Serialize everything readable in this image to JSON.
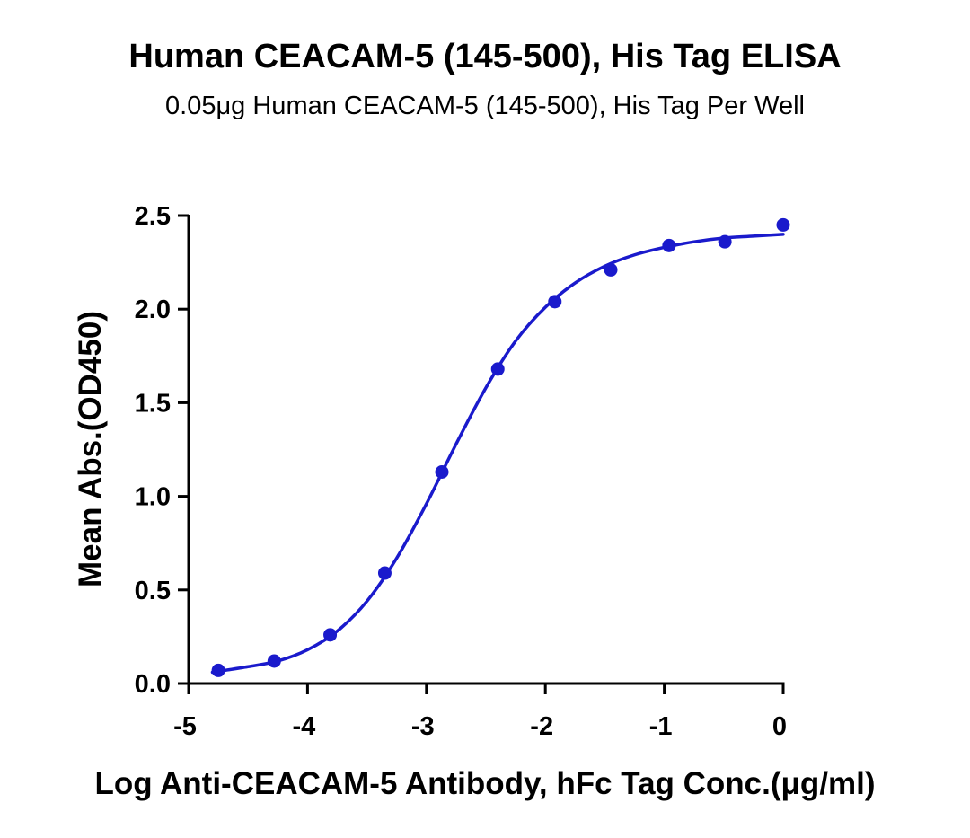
{
  "chart_data": {
    "type": "scatter",
    "title": "Human CEACAM-5 (145-500), His Tag ELISA",
    "subtitle": "0.05μg Human CEACAM-5 (145-500), His Tag Per Well",
    "xlabel": "Log Anti-CEACAM-5 Antibody, hFc Tag Conc.(μg/ml)",
    "ylabel": "Mean Abs.(OD450)",
    "xlim": [
      -5,
      0
    ],
    "ylim": [
      0,
      2.5
    ],
    "x_ticks": [
      "-5",
      "-4",
      "-3",
      "-2",
      "-1",
      "0"
    ],
    "y_ticks": [
      "0.0",
      "0.5",
      "1.0",
      "1.5",
      "2.0",
      "2.5"
    ],
    "grid": false,
    "color": "#1a1acc",
    "series": [
      {
        "points": [
          {
            "x": -4.75,
            "y": 0.07
          },
          {
            "x": -4.28,
            "y": 0.12
          },
          {
            "x": -3.81,
            "y": 0.26
          },
          {
            "x": -3.35,
            "y": 0.59
          },
          {
            "x": -2.87,
            "y": 1.13
          },
          {
            "x": -2.4,
            "y": 1.68
          },
          {
            "x": -1.92,
            "y": 2.04
          },
          {
            "x": -1.45,
            "y": 2.21
          },
          {
            "x": -0.96,
            "y": 2.34
          },
          {
            "x": -0.49,
            "y": 2.36
          },
          {
            "x": 0.0,
            "y": 2.45
          }
        ],
        "fit_curve": [
          {
            "x": -4.8,
            "y": 0.06
          },
          {
            "x": -4.5,
            "y": 0.09
          },
          {
            "x": -4.25,
            "y": 0.12
          },
          {
            "x": -4.0,
            "y": 0.18
          },
          {
            "x": -3.75,
            "y": 0.28
          },
          {
            "x": -3.5,
            "y": 0.44
          },
          {
            "x": -3.25,
            "y": 0.67
          },
          {
            "x": -3.0,
            "y": 0.96
          },
          {
            "x": -2.75,
            "y": 1.28
          },
          {
            "x": -2.5,
            "y": 1.58
          },
          {
            "x": -2.25,
            "y": 1.83
          },
          {
            "x": -2.0,
            "y": 2.01
          },
          {
            "x": -1.75,
            "y": 2.14
          },
          {
            "x": -1.5,
            "y": 2.23
          },
          {
            "x": -1.25,
            "y": 2.29
          },
          {
            "x": -1.0,
            "y": 2.33
          },
          {
            "x": -0.75,
            "y": 2.36
          },
          {
            "x": -0.5,
            "y": 2.38
          },
          {
            "x": -0.25,
            "y": 2.39
          },
          {
            "x": 0.0,
            "y": 2.4
          }
        ]
      }
    ]
  }
}
